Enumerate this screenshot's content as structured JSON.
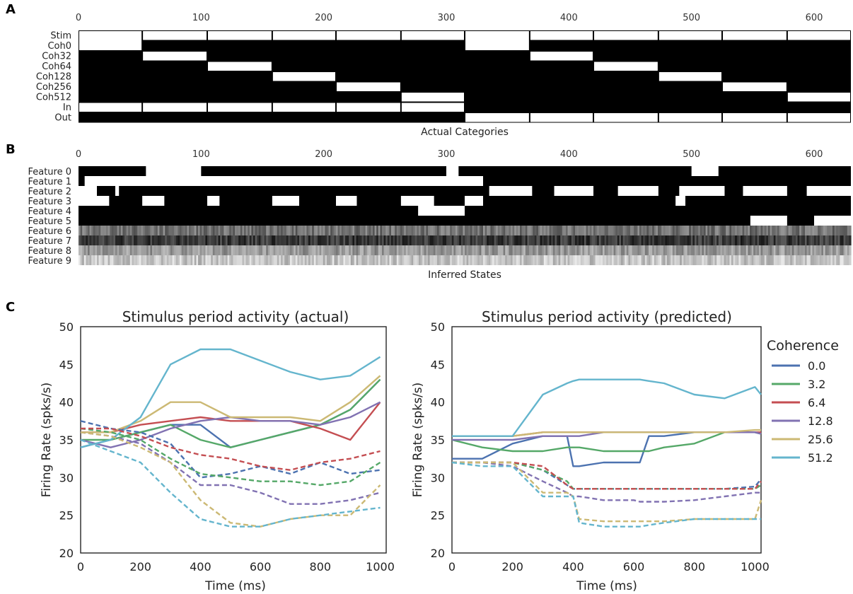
{
  "panel_labels": {
    "a": "A",
    "b": "B",
    "c": "C"
  },
  "chart_data": [
    {
      "type": "heatmap",
      "panel": "A",
      "xlabel": "Actual Categories",
      "xticks": [
        "0",
        "100",
        "200",
        "300",
        "400",
        "500",
        "600"
      ],
      "xlim": [
        0,
        630
      ],
      "rows": [
        "Stim",
        "Coh0",
        "Coh32",
        "Coh64",
        "Coh128",
        "Coh256",
        "Coh512",
        "In",
        "Out"
      ],
      "blocks": [
        {
          "start": 0,
          "end": 52,
          "coh": "Coh0",
          "target": "In"
        },
        {
          "start": 52,
          "end": 105,
          "coh": "Coh32",
          "target": "In"
        },
        {
          "start": 105,
          "end": 158,
          "coh": "Coh64",
          "target": "In"
        },
        {
          "start": 158,
          "end": 210,
          "coh": "Coh128",
          "target": "In"
        },
        {
          "start": 210,
          "end": 263,
          "coh": "Coh256",
          "target": "In"
        },
        {
          "start": 263,
          "end": 315,
          "coh": "Coh512",
          "target": "In"
        },
        {
          "start": 315,
          "end": 368,
          "coh": "Coh0",
          "target": "Out"
        },
        {
          "start": 368,
          "end": 420,
          "coh": "Coh32",
          "target": "Out"
        },
        {
          "start": 420,
          "end": 473,
          "coh": "Coh64",
          "target": "Out"
        },
        {
          "start": 473,
          "end": 525,
          "coh": "Coh128",
          "target": "Out"
        },
        {
          "start": 525,
          "end": 578,
          "coh": "Coh256",
          "target": "Out"
        },
        {
          "start": 578,
          "end": 630,
          "coh": "Coh512",
          "target": "Out"
        }
      ]
    },
    {
      "type": "heatmap",
      "panel": "B",
      "xlabel": "Inferred States",
      "xticks": [
        "0",
        "100",
        "200",
        "300",
        "400",
        "500",
        "600"
      ],
      "xlim": [
        0,
        630
      ],
      "rows": [
        "Feature 0",
        "Feature 1",
        "Feature 2",
        "Feature 3",
        "Feature 4",
        "Feature 5",
        "Feature 6",
        "Feature 7",
        "Feature 8",
        "Feature 9"
      ],
      "on_segments": [
        [
          [
            55,
            100
          ],
          [
            300,
            310
          ],
          [
            500,
            522
          ]
        ],
        [
          [
            5,
            330
          ]
        ],
        [
          [
            0,
            15
          ],
          [
            30,
            33
          ],
          [
            335,
            370
          ],
          [
            388,
            420
          ],
          [
            440,
            473
          ],
          [
            490,
            527
          ],
          [
            542,
            578
          ],
          [
            594,
            630
          ]
        ],
        [
          [
            0,
            25
          ],
          [
            52,
            70
          ],
          [
            105,
            115
          ],
          [
            158,
            180
          ],
          [
            210,
            227
          ],
          [
            263,
            290
          ],
          [
            315,
            330
          ],
          [
            487,
            495
          ]
        ],
        [
          [
            277,
            315
          ]
        ],
        [
          [
            548,
            578
          ],
          [
            600,
            630
          ]
        ],
        [],
        [],
        [],
        []
      ],
      "noise_levels": [
        null,
        null,
        null,
        null,
        null,
        null,
        0.45,
        0.22,
        0.6,
        0.78
      ]
    },
    {
      "type": "line",
      "panel": "C-left",
      "title": "Stimulus period activity (actual)",
      "xlabel": "Time (ms)",
      "ylabel": "Firing Rate (spks/s)",
      "xlim": [
        0,
        1020
      ],
      "ylim": [
        20,
        50
      ],
      "xticks": [
        0,
        200,
        400,
        600,
        800,
        1000
      ],
      "yticks": [
        20,
        25,
        30,
        35,
        40,
        45,
        50
      ],
      "x": [
        0,
        100,
        200,
        300,
        400,
        500,
        600,
        700,
        800,
        900,
        1000
      ],
      "series": [
        {
          "name": "0.0",
          "style": "solid",
          "values": [
            34,
            35,
            36,
            37,
            37,
            34,
            35,
            36,
            37,
            39,
            43
          ]
        },
        {
          "name": "3.2",
          "style": "solid",
          "values": [
            35,
            35,
            36,
            37,
            35,
            34,
            35,
            36,
            37,
            39,
            43
          ]
        },
        {
          "name": "6.4",
          "style": "solid",
          "values": [
            36,
            36,
            37,
            37.5,
            38,
            37.5,
            37.5,
            37.5,
            36.5,
            35,
            40
          ]
        },
        {
          "name": "12.8",
          "style": "solid",
          "values": [
            35,
            34,
            35,
            36.5,
            37.5,
            38,
            37.5,
            37.5,
            37,
            38,
            40
          ]
        },
        {
          "name": "25.6",
          "style": "solid",
          "values": [
            36,
            36,
            37.5,
            40,
            40,
            38,
            38,
            38,
            37.5,
            40,
            43.5
          ]
        },
        {
          "name": "51.2",
          "style": "solid",
          "values": [
            34,
            35,
            38,
            45,
            47,
            47,
            45.5,
            44,
            43,
            43.5,
            46
          ]
        },
        {
          "name": "0.0",
          "style": "dashed",
          "values": [
            37.5,
            36.5,
            36,
            34.5,
            30,
            30.5,
            31.5,
            30.5,
            32,
            30.5,
            31
          ]
        },
        {
          "name": "3.2",
          "style": "dashed",
          "values": [
            36.5,
            36,
            35,
            32.5,
            30.5,
            30,
            29.5,
            29.5,
            29,
            29.5,
            32
          ]
        },
        {
          "name": "6.4",
          "style": "dashed",
          "values": [
            36.5,
            36.5,
            35.5,
            34,
            33,
            32.5,
            31.5,
            31,
            32,
            32.5,
            33.5
          ]
        },
        {
          "name": "12.8",
          "style": "dashed",
          "values": [
            36,
            35.5,
            34.5,
            32,
            29,
            29,
            28,
            26.5,
            26.5,
            27,
            28
          ]
        },
        {
          "name": "25.6",
          "style": "dashed",
          "values": [
            36,
            35.5,
            34,
            32,
            27,
            24,
            23.5,
            24.5,
            25,
            25,
            29
          ]
        },
        {
          "name": "51.2",
          "style": "dashed",
          "values": [
            35,
            33.5,
            32,
            28,
            24.5,
            23.5,
            23.5,
            24.5,
            25,
            25.5,
            26
          ]
        }
      ]
    },
    {
      "type": "line",
      "panel": "C-right",
      "title": "Stimulus period activity (predicted)",
      "xlabel": "Time (ms)",
      "ylabel": "Firing Rate (spks/s)",
      "xlim": [
        0,
        1020
      ],
      "ylim": [
        20,
        50
      ],
      "xticks": [
        0,
        200,
        400,
        600,
        800,
        1000
      ],
      "yticks": [
        20,
        25,
        30,
        35,
        40,
        45,
        50
      ],
      "legend_title": "Coherence",
      "legend_position": "right",
      "x": [
        0,
        100,
        200,
        300,
        380,
        400,
        420,
        500,
        600,
        620,
        650,
        700,
        800,
        900,
        1000,
        1020
      ],
      "series": [
        {
          "name": "0.0",
          "style": "solid",
          "values": [
            32.5,
            32.5,
            34.5,
            35.5,
            35.5,
            31.5,
            31.5,
            32,
            32,
            32,
            35.5,
            35.5,
            36,
            36,
            36,
            35.8
          ]
        },
        {
          "name": "3.2",
          "style": "solid",
          "values": [
            35,
            34,
            33.5,
            33.5,
            34,
            34,
            34,
            33.5,
            33.5,
            33.5,
            33.5,
            34,
            34.5,
            36,
            36,
            35.8
          ]
        },
        {
          "name": "6.4",
          "style": "solid",
          "values": [
            35.5,
            35.5,
            35.5,
            36,
            36,
            36,
            36,
            36,
            36,
            36,
            36,
            36,
            36,
            36,
            36,
            36
          ]
        },
        {
          "name": "12.8",
          "style": "solid",
          "values": [
            35,
            35,
            35,
            35.5,
            35.5,
            35.5,
            35.5,
            36,
            36,
            36,
            36,
            36,
            36,
            36,
            36,
            35.8
          ]
        },
        {
          "name": "25.6",
          "style": "solid",
          "values": [
            35.5,
            35.5,
            35.5,
            36,
            36,
            36,
            36,
            36,
            36,
            36,
            36,
            36,
            36,
            36,
            36.3,
            36.3
          ]
        },
        {
          "name": "51.2",
          "style": "solid",
          "values": [
            35.5,
            35.5,
            35.5,
            41,
            42.5,
            42.8,
            43,
            43,
            43,
            43,
            42.8,
            42.5,
            41,
            40.5,
            42,
            41
          ]
        },
        {
          "name": "0.0",
          "style": "dashed",
          "values": [
            32,
            32,
            32,
            31,
            29,
            28.5,
            28.5,
            28.5,
            28.5,
            28.5,
            28.5,
            28.5,
            28.5,
            28.5,
            28.8,
            29.8
          ]
        },
        {
          "name": "3.2",
          "style": "dashed",
          "values": [
            32,
            32,
            32,
            31,
            29.5,
            28.5,
            28.5,
            28.5,
            28.5,
            28.5,
            28.5,
            28.5,
            28.5,
            28.5,
            28.5,
            29
          ]
        },
        {
          "name": "6.4",
          "style": "dashed",
          "values": [
            32,
            32,
            32,
            31.5,
            29,
            28.5,
            28.5,
            28.5,
            28.5,
            28.5,
            28.5,
            28.5,
            28.5,
            28.5,
            28.5,
            29.5
          ]
        },
        {
          "name": "12.8",
          "style": "dashed",
          "values": [
            32,
            32,
            31.5,
            29.5,
            28,
            27.5,
            27.5,
            27,
            27,
            26.8,
            26.8,
            26.8,
            27,
            27.5,
            28,
            28
          ]
        },
        {
          "name": "25.6",
          "style": "dashed",
          "values": [
            32,
            32,
            32,
            28,
            28,
            27.5,
            24.5,
            24.2,
            24.2,
            24.2,
            24.2,
            24.2,
            24.5,
            24.5,
            24.5,
            27
          ]
        },
        {
          "name": "51.2",
          "style": "dashed",
          "values": [
            32,
            31.5,
            31.5,
            27.5,
            27.5,
            27.5,
            24,
            23.5,
            23.5,
            23.5,
            23.7,
            24,
            24.5,
            24.5,
            24.5,
            24.5
          ]
        }
      ]
    }
  ],
  "colors": {
    "0.0": "#4c72b0",
    "3.2": "#55a868",
    "6.4": "#c44e52",
    "12.8": "#8172b2",
    "25.6": "#ccb974",
    "51.2": "#64b5cd"
  }
}
